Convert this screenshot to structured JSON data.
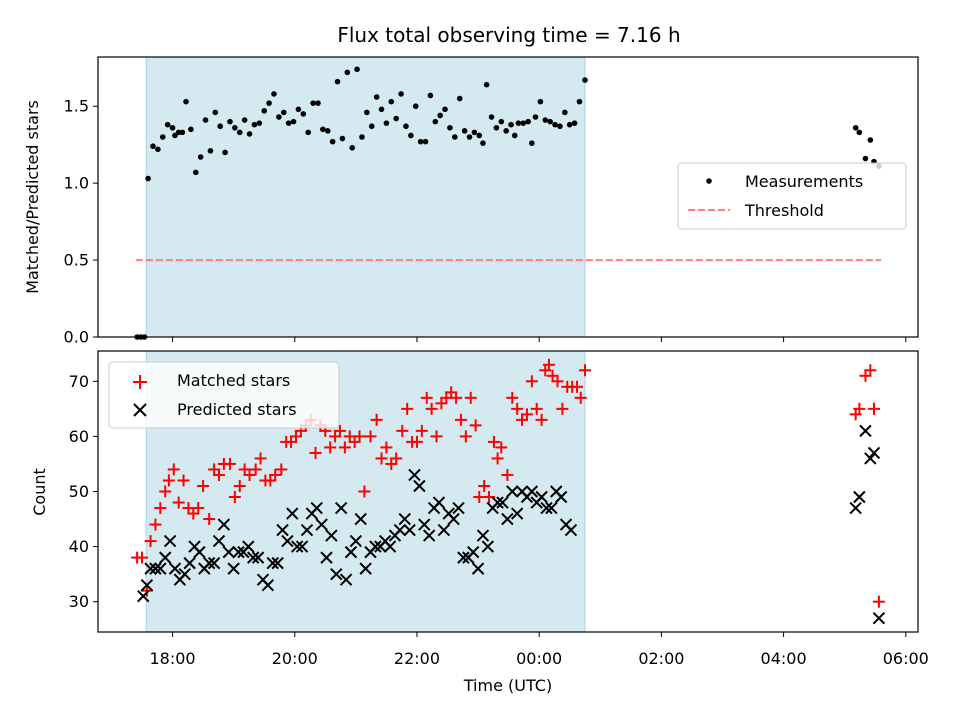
{
  "chart_data": {
    "type": "scatter",
    "title": "Flux total observing time = 7.16 h",
    "xlabel": "Time (UTC)",
    "x_ticks": [
      {
        "label": "18:00",
        "h": 18
      },
      {
        "label": "20:00",
        "h": 20
      },
      {
        "label": "22:00",
        "h": 22
      },
      {
        "label": "00:00",
        "h": 24
      },
      {
        "label": "02:00",
        "h": 26
      },
      {
        "label": "04:00",
        "h": 28
      },
      {
        "label": "06:00",
        "h": 30
      }
    ],
    "xlim": [
      16.78,
      30.2
    ],
    "highlight_span": [
      17.57,
      24.75
    ],
    "panels": [
      {
        "name": "ratio",
        "ylabel": "Matched/Predicted stars",
        "ylim": [
          0,
          1.82
        ],
        "yticks": [
          0.0,
          0.5,
          1.0,
          1.5
        ],
        "ytick_labels": [
          "0.0",
          "0.5",
          "1.0",
          "1.5"
        ],
        "threshold": {
          "value": 0.5,
          "x": [
            17.4,
            29.6
          ],
          "color": "#ff7f7f"
        },
        "legend": {
          "position": "center-right",
          "entries": [
            "Measurements",
            "Threshold"
          ]
        },
        "measurements": [
          [
            17.42,
            0.0
          ],
          [
            17.48,
            0.0
          ],
          [
            17.54,
            0.0
          ],
          [
            17.6,
            1.03
          ],
          [
            17.68,
            1.24
          ],
          [
            17.76,
            1.22
          ],
          [
            17.84,
            1.3
          ],
          [
            17.92,
            1.38
          ],
          [
            18.0,
            1.36
          ],
          [
            18.04,
            1.31
          ],
          [
            18.1,
            1.33
          ],
          [
            18.16,
            1.33
          ],
          [
            18.22,
            1.53
          ],
          [
            18.3,
            1.35
          ],
          [
            18.38,
            1.07
          ],
          [
            18.46,
            1.17
          ],
          [
            18.54,
            1.41
          ],
          [
            18.62,
            1.21
          ],
          [
            18.7,
            1.46
          ],
          [
            18.78,
            1.37
          ],
          [
            18.86,
            1.2
          ],
          [
            18.94,
            1.4
          ],
          [
            19.02,
            1.36
          ],
          [
            19.1,
            1.33
          ],
          [
            19.18,
            1.41
          ],
          [
            19.26,
            1.32
          ],
          [
            19.34,
            1.38
          ],
          [
            19.42,
            1.39
          ],
          [
            19.5,
            1.47
          ],
          [
            19.58,
            1.52
          ],
          [
            19.66,
            1.58
          ],
          [
            19.74,
            1.43
          ],
          [
            19.82,
            1.46
          ],
          [
            19.9,
            1.39
          ],
          [
            19.98,
            1.4
          ],
          [
            20.06,
            1.48
          ],
          [
            20.14,
            1.45
          ],
          [
            20.22,
            1.33
          ],
          [
            20.3,
            1.52
          ],
          [
            20.38,
            1.52
          ],
          [
            20.46,
            1.35
          ],
          [
            20.54,
            1.34
          ],
          [
            20.62,
            1.27
          ],
          [
            20.7,
            1.66
          ],
          [
            20.78,
            1.29
          ],
          [
            20.86,
            1.72
          ],
          [
            20.94,
            1.23
          ],
          [
            21.02,
            1.74
          ],
          [
            21.1,
            1.3
          ],
          [
            21.18,
            1.46
          ],
          [
            21.26,
            1.37
          ],
          [
            21.34,
            1.56
          ],
          [
            21.42,
            1.48
          ],
          [
            21.5,
            1.39
          ],
          [
            21.58,
            1.53
          ],
          [
            21.66,
            1.42
          ],
          [
            21.74,
            1.58
          ],
          [
            21.82,
            1.37
          ],
          [
            21.9,
            1.31
          ],
          [
            21.98,
            1.5
          ],
          [
            22.06,
            1.27
          ],
          [
            22.14,
            1.27
          ],
          [
            22.22,
            1.57
          ],
          [
            22.3,
            1.4
          ],
          [
            22.38,
            1.44
          ],
          [
            22.46,
            1.48
          ],
          [
            22.54,
            1.36
          ],
          [
            22.62,
            1.3
          ],
          [
            22.7,
            1.55
          ],
          [
            22.78,
            1.34
          ],
          [
            22.86,
            1.3
          ],
          [
            22.94,
            1.33
          ],
          [
            23.02,
            1.31
          ],
          [
            23.08,
            1.26
          ],
          [
            23.14,
            1.64
          ],
          [
            23.22,
            1.43
          ],
          [
            23.3,
            1.36
          ],
          [
            23.38,
            1.4
          ],
          [
            23.46,
            1.34
          ],
          [
            23.54,
            1.38
          ],
          [
            23.6,
            1.31
          ],
          [
            23.66,
            1.39
          ],
          [
            23.74,
            1.39
          ],
          [
            23.82,
            1.4
          ],
          [
            23.88,
            1.26
          ],
          [
            23.94,
            1.43
          ],
          [
            24.02,
            1.53
          ],
          [
            24.1,
            1.41
          ],
          [
            24.18,
            1.4
          ],
          [
            24.26,
            1.38
          ],
          [
            24.34,
            1.37
          ],
          [
            24.42,
            1.46
          ],
          [
            24.5,
            1.38
          ],
          [
            24.58,
            1.39
          ],
          [
            24.66,
            1.53
          ],
          [
            24.75,
            1.67
          ],
          [
            29.18,
            1.36
          ],
          [
            29.24,
            1.33
          ],
          [
            29.34,
            1.16
          ],
          [
            29.42,
            1.28
          ],
          [
            29.48,
            1.14
          ],
          [
            29.56,
            1.11
          ]
        ]
      },
      {
        "name": "counts",
        "ylabel": "Count",
        "ylim": [
          24.5,
          75.5
        ],
        "yticks": [
          30,
          40,
          50,
          60,
          70
        ],
        "ytick_labels": [
          "30",
          "40",
          "50",
          "60",
          "70"
        ],
        "legend": {
          "position": "upper-left",
          "entries": [
            "Matched stars",
            "Predicted stars"
          ]
        },
        "matched": [
          [
            17.42,
            38
          ],
          [
            17.5,
            38
          ],
          [
            17.58,
            32
          ],
          [
            17.64,
            41
          ],
          [
            17.72,
            44
          ],
          [
            17.8,
            47
          ],
          [
            17.88,
            50
          ],
          [
            17.94,
            52
          ],
          [
            18.02,
            54
          ],
          [
            18.1,
            48
          ],
          [
            18.18,
            52
          ],
          [
            18.26,
            47
          ],
          [
            18.34,
            46
          ],
          [
            18.42,
            47
          ],
          [
            18.5,
            51
          ],
          [
            18.6,
            45
          ],
          [
            18.68,
            54
          ],
          [
            18.76,
            53
          ],
          [
            18.84,
            55
          ],
          [
            18.94,
            55
          ],
          [
            19.02,
            49
          ],
          [
            19.1,
            51
          ],
          [
            19.18,
            54
          ],
          [
            19.26,
            53
          ],
          [
            19.36,
            54
          ],
          [
            19.44,
            56
          ],
          [
            19.52,
            52
          ],
          [
            19.6,
            52
          ],
          [
            19.68,
            53
          ],
          [
            19.78,
            54
          ],
          [
            19.86,
            59
          ],
          [
            19.94,
            59
          ],
          [
            20.02,
            60
          ],
          [
            20.1,
            61
          ],
          [
            20.18,
            62
          ],
          [
            20.26,
            63
          ],
          [
            20.34,
            57
          ],
          [
            20.42,
            62
          ],
          [
            20.5,
            61
          ],
          [
            20.58,
            58
          ],
          [
            20.66,
            60
          ],
          [
            20.74,
            61
          ],
          [
            20.82,
            58
          ],
          [
            20.9,
            60
          ],
          [
            20.98,
            59
          ],
          [
            21.06,
            60
          ],
          [
            21.14,
            50
          ],
          [
            21.24,
            60
          ],
          [
            21.34,
            63
          ],
          [
            21.42,
            56
          ],
          [
            21.5,
            58
          ],
          [
            21.58,
            55
          ],
          [
            21.66,
            56
          ],
          [
            21.76,
            61
          ],
          [
            21.84,
            65
          ],
          [
            21.92,
            59
          ],
          [
            22.0,
            59
          ],
          [
            22.08,
            61
          ],
          [
            22.16,
            67
          ],
          [
            22.24,
            65
          ],
          [
            22.32,
            60
          ],
          [
            22.4,
            66
          ],
          [
            22.48,
            67
          ],
          [
            22.56,
            68
          ],
          [
            22.64,
            67
          ],
          [
            22.72,
            63
          ],
          [
            22.8,
            60
          ],
          [
            22.88,
            67
          ],
          [
            22.96,
            62
          ],
          [
            23.02,
            49
          ],
          [
            23.1,
            51
          ],
          [
            23.18,
            49
          ],
          [
            23.26,
            59
          ],
          [
            23.32,
            56
          ],
          [
            23.38,
            58
          ],
          [
            23.48,
            53
          ],
          [
            23.56,
            67
          ],
          [
            23.64,
            65
          ],
          [
            23.72,
            63
          ],
          [
            23.8,
            64
          ],
          [
            23.88,
            70
          ],
          [
            23.96,
            65
          ],
          [
            24.04,
            63
          ],
          [
            24.1,
            72
          ],
          [
            24.16,
            73
          ],
          [
            24.22,
            71
          ],
          [
            24.3,
            70
          ],
          [
            24.38,
            65
          ],
          [
            24.46,
            69
          ],
          [
            24.54,
            69
          ],
          [
            24.62,
            69
          ],
          [
            24.68,
            67
          ],
          [
            24.75,
            72
          ],
          [
            29.18,
            64
          ],
          [
            29.24,
            65
          ],
          [
            29.34,
            71
          ],
          [
            29.42,
            72
          ],
          [
            29.48,
            65
          ],
          [
            29.56,
            30
          ]
        ],
        "predicted": [
          [
            17.52,
            31
          ],
          [
            17.58,
            33
          ],
          [
            17.64,
            36
          ],
          [
            17.72,
            36
          ],
          [
            17.8,
            36
          ],
          [
            17.88,
            38
          ],
          [
            17.96,
            41
          ],
          [
            18.04,
            36
          ],
          [
            18.12,
            34
          ],
          [
            18.2,
            35
          ],
          [
            18.28,
            37
          ],
          [
            18.36,
            40
          ],
          [
            18.44,
            39
          ],
          [
            18.52,
            36
          ],
          [
            18.6,
            37
          ],
          [
            18.68,
            37
          ],
          [
            18.76,
            41
          ],
          [
            18.84,
            44
          ],
          [
            18.92,
            39
          ],
          [
            19.0,
            36
          ],
          [
            19.08,
            39
          ],
          [
            19.16,
            39
          ],
          [
            19.24,
            40
          ],
          [
            19.32,
            38
          ],
          [
            19.4,
            38
          ],
          [
            19.48,
            34
          ],
          [
            19.56,
            33
          ],
          [
            19.64,
            37
          ],
          [
            19.72,
            37
          ],
          [
            19.8,
            43
          ],
          [
            19.88,
            41
          ],
          [
            19.96,
            46
          ],
          [
            20.04,
            40
          ],
          [
            20.12,
            40
          ],
          [
            20.2,
            43
          ],
          [
            20.28,
            46
          ],
          [
            20.36,
            47
          ],
          [
            20.44,
            44
          ],
          [
            20.52,
            38
          ],
          [
            20.6,
            42
          ],
          [
            20.68,
            35
          ],
          [
            20.76,
            47
          ],
          [
            20.84,
            34
          ],
          [
            20.92,
            39
          ],
          [
            21.0,
            41
          ],
          [
            21.08,
            45
          ],
          [
            21.16,
            36
          ],
          [
            21.24,
            39
          ],
          [
            21.32,
            40
          ],
          [
            21.4,
            40
          ],
          [
            21.48,
            41
          ],
          [
            21.56,
            40
          ],
          [
            21.64,
            42
          ],
          [
            21.72,
            43
          ],
          [
            21.8,
            45
          ],
          [
            21.88,
            43
          ],
          [
            21.96,
            53
          ],
          [
            22.04,
            51
          ],
          [
            22.12,
            44
          ],
          [
            22.2,
            42
          ],
          [
            22.28,
            47
          ],
          [
            22.36,
            48
          ],
          [
            22.44,
            43
          ],
          [
            22.52,
            46
          ],
          [
            22.6,
            45
          ],
          [
            22.68,
            47
          ],
          [
            22.76,
            38
          ],
          [
            22.84,
            38
          ],
          [
            22.92,
            39
          ],
          [
            23.0,
            36
          ],
          [
            23.08,
            42
          ],
          [
            23.16,
            40
          ],
          [
            23.24,
            47
          ],
          [
            23.32,
            48
          ],
          [
            23.4,
            48
          ],
          [
            23.48,
            45
          ],
          [
            23.56,
            50
          ],
          [
            23.64,
            46
          ],
          [
            23.72,
            50
          ],
          [
            23.8,
            49
          ],
          [
            23.88,
            50
          ],
          [
            23.96,
            48
          ],
          [
            24.04,
            49
          ],
          [
            24.12,
            47
          ],
          [
            24.2,
            47
          ],
          [
            24.28,
            50
          ],
          [
            24.36,
            49
          ],
          [
            24.44,
            44
          ],
          [
            24.52,
            43
          ],
          [
            29.18,
            47
          ],
          [
            29.24,
            49
          ],
          [
            29.34,
            61
          ],
          [
            29.42,
            56
          ],
          [
            29.48,
            57
          ],
          [
            29.56,
            27
          ]
        ]
      }
    ],
    "colors": {
      "measurement": "#000000",
      "matched": "#ff0000",
      "predicted": "#000000",
      "span": "#d4eaf0",
      "span_edge": "#a8d4e0",
      "threshold": "#ff7f7f"
    }
  }
}
